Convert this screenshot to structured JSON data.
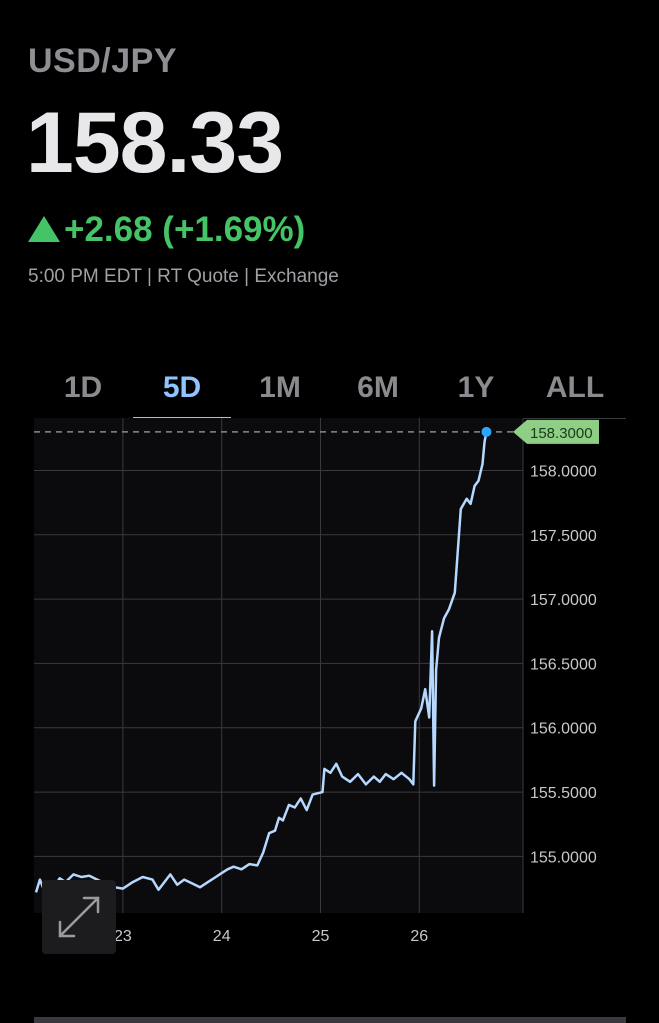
{
  "header": {
    "symbol": "USD/JPY",
    "price": "158.33",
    "change": "+2.68 (+1.69%)",
    "quote_info": "5:00 PM EDT | RT Quote | Exchange"
  },
  "tabs": [
    {
      "label": "1D",
      "active": false
    },
    {
      "label": "5D",
      "active": true
    },
    {
      "label": "1M",
      "active": false
    },
    {
      "label": "6M",
      "active": false
    },
    {
      "label": "1Y",
      "active": false
    },
    {
      "label": "ALL",
      "active": false
    }
  ],
  "colors": {
    "positive": "#45c367",
    "accent": "#8fc4ff",
    "line": "#b5d8ff",
    "last_dot": "#2aa6ff",
    "grid": "#3a3a3e",
    "label_bg": "#8fcf85"
  },
  "chart_data": {
    "type": "line",
    "title": "",
    "xlabel": "",
    "ylabel": "",
    "xlim": [
      22.1,
      27.05
    ],
    "ylim": [
      154.56,
      158.33
    ],
    "x_ticks": [
      23,
      24,
      25,
      26
    ],
    "x_tick_labels": [
      "23",
      "24",
      "25",
      "26"
    ],
    "y_ticks": [
      155.0,
      155.5,
      156.0,
      156.5,
      157.0,
      157.5,
      158.0
    ],
    "y_tick_labels": [
      "155.0000",
      "155.5000",
      "156.0000",
      "156.5000",
      "157.0000",
      "157.5000",
      "158.0000"
    ],
    "last_value": 158.3,
    "last_value_label": "158.3000",
    "grid": true,
    "series": [
      {
        "x": [
          22.12,
          22.16,
          22.2,
          22.25,
          22.3,
          22.36,
          22.42,
          22.5,
          22.58,
          22.66,
          22.74,
          22.82,
          22.92,
          23.0,
          23.1,
          23.2,
          23.3,
          23.36,
          23.42,
          23.48,
          23.55,
          23.62,
          23.7,
          23.78,
          23.86,
          23.94,
          24.0,
          24.06,
          24.12,
          24.2,
          24.28,
          24.36,
          24.42,
          24.48,
          24.54,
          24.58,
          24.62,
          24.68,
          24.74,
          24.8,
          24.86,
          24.92,
          25.02,
          25.04,
          25.1,
          25.16,
          25.22,
          25.3,
          25.38,
          25.46,
          25.54,
          25.6,
          25.66,
          25.74,
          25.82,
          25.9,
          25.94,
          25.96,
          26.02,
          26.06,
          26.1,
          26.13,
          26.15,
          26.17,
          26.2,
          26.25,
          26.3,
          26.36,
          26.42,
          26.48,
          26.52,
          26.56,
          26.6,
          26.64,
          26.66,
          26.68
        ],
        "y": [
          154.72,
          154.82,
          154.74,
          154.8,
          154.76,
          154.83,
          154.8,
          154.86,
          154.84,
          154.85,
          154.82,
          154.79,
          154.76,
          154.75,
          154.8,
          154.84,
          154.82,
          154.74,
          154.8,
          154.86,
          154.78,
          154.82,
          154.79,
          154.76,
          154.8,
          154.84,
          154.87,
          154.9,
          154.92,
          154.9,
          154.94,
          154.93,
          155.03,
          155.18,
          155.2,
          155.3,
          155.28,
          155.4,
          155.38,
          155.45,
          155.36,
          155.48,
          155.5,
          155.68,
          155.65,
          155.72,
          155.62,
          155.58,
          155.64,
          155.56,
          155.62,
          155.58,
          155.64,
          155.6,
          155.65,
          155.6,
          155.56,
          156.05,
          156.15,
          156.3,
          156.08,
          156.75,
          155.55,
          156.45,
          156.7,
          156.85,
          156.92,
          157.05,
          157.7,
          157.78,
          157.74,
          157.88,
          157.92,
          158.05,
          158.22,
          158.3
        ]
      }
    ]
  }
}
